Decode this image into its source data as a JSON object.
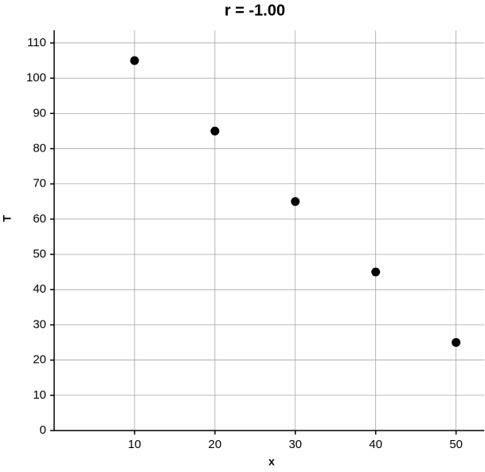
{
  "chart_data": {
    "type": "scatter",
    "title": "r = -1.00",
    "xlabel": "x",
    "ylabel": "T",
    "x": [
      10,
      20,
      30,
      40,
      50
    ],
    "values": [
      105,
      85,
      65,
      45,
      25
    ],
    "color": "#000000",
    "xlim": [
      0,
      53.5
    ],
    "ylim": [
      0,
      113.6
    ],
    "xticks": [
      10,
      20,
      30,
      40,
      50
    ],
    "yticks": [
      0,
      10,
      20,
      30,
      40,
      50,
      60,
      70,
      80,
      90,
      100,
      110
    ],
    "grid": true
  }
}
